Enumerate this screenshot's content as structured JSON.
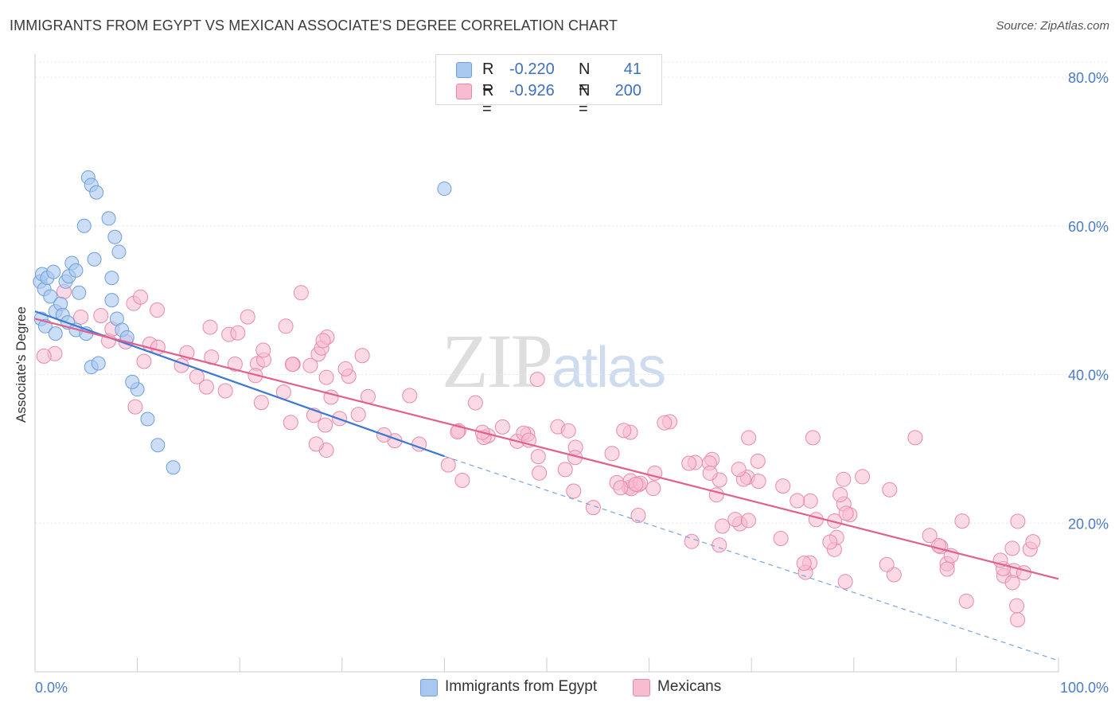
{
  "title": "IMMIGRANTS FROM EGYPT VS MEXICAN ASSOCIATE'S DEGREE CORRELATION CHART",
  "source": "Source: ZipAtlas.com",
  "watermark": {
    "zip": "ZIP",
    "atlas": "atlas"
  },
  "legend": {
    "rows": [
      {
        "r_label": "R =",
        "r_value": "-0.220",
        "n_label": "N =",
        "n_value": "41",
        "color": "#a9c8f0",
        "border": "#6f9edb"
      },
      {
        "r_label": "R =",
        "r_value": "-0.926",
        "n_label": "N =",
        "n_value": "200",
        "color": "#f7bcd0",
        "border": "#e889aa"
      }
    ]
  },
  "bottom_legend": [
    {
      "label": "Immigrants from Egypt",
      "color": "#a9c8f0",
      "border": "#6f9edb"
    },
    {
      "label": "Mexicans",
      "color": "#f7bcd0",
      "border": "#e889aa"
    }
  ],
  "chart_data": {
    "type": "scatter",
    "title": "IMMIGRANTS FROM EGYPT VS MEXICAN ASSOCIATE'S DEGREE CORRELATION CHART",
    "xlabel": "",
    "ylabel": "Associate's Degree",
    "xlim": [
      0,
      100
    ],
    "ylim": [
      0,
      80
    ],
    "x_tick_labels": [
      "0.0%",
      "100.0%"
    ],
    "y_ticks": [
      20,
      40,
      60,
      80
    ],
    "y_tick_labels": [
      "20.0%",
      "40.0%",
      "60.0%",
      "80.0%"
    ],
    "grid": true,
    "legend_position": "top-center",
    "series": [
      {
        "name": "Immigrants from Egypt",
        "color": "#a9c8f0",
        "stroke": "#6f9edb",
        "r": -0.22,
        "n": 41,
        "trend": {
          "x0": 0,
          "y0": 48.5,
          "x1": 40,
          "y1": 29.0,
          "dashed_to_x": 100,
          "dashed_to_y": 1.5,
          "color": "#3a78d4"
        },
        "points": [
          [
            0.5,
            52.5
          ],
          [
            0.7,
            53.5
          ],
          [
            0.9,
            51.5
          ],
          [
            1.2,
            53
          ],
          [
            1.5,
            50.5
          ],
          [
            1.8,
            53.8
          ],
          [
            2.0,
            48.5
          ],
          [
            2.5,
            49.5
          ],
          [
            2.7,
            48.0
          ],
          [
            3.0,
            52.5
          ],
          [
            3.3,
            53.2
          ],
          [
            3.6,
            55.0
          ],
          [
            4.0,
            54.0
          ],
          [
            4.3,
            51.0
          ],
          [
            4.8,
            60.0
          ],
          [
            5.2,
            66.5
          ],
          [
            5.5,
            65.5
          ],
          [
            5.8,
            55.5
          ],
          [
            6.0,
            64.5
          ],
          [
            0.6,
            47.5
          ],
          [
            1.0,
            46.5
          ],
          [
            2.0,
            45.5
          ],
          [
            3.2,
            47.0
          ],
          [
            4.0,
            46.0
          ],
          [
            5.0,
            45.5
          ],
          [
            5.5,
            41.0
          ],
          [
            6.2,
            41.5
          ],
          [
            7.2,
            61.0
          ],
          [
            7.5,
            53.0
          ],
          [
            7.8,
            58.5
          ],
          [
            8.2,
            56.5
          ],
          [
            7.5,
            50.0
          ],
          [
            8.0,
            47.5
          ],
          [
            8.5,
            46.0
          ],
          [
            9.0,
            45.0
          ],
          [
            10.0,
            38.0
          ],
          [
            11.0,
            34.0
          ],
          [
            12.0,
            30.5
          ],
          [
            13.5,
            27.5
          ],
          [
            40.0,
            65.0
          ],
          [
            9.5,
            39.0
          ]
        ]
      },
      {
        "name": "Mexicans",
        "color": "#f7bcd0",
        "stroke": "#e889aa",
        "r": -0.926,
        "n": 200,
        "trend": {
          "x0": 0,
          "y0": 47.5,
          "x1": 100,
          "y1": 12.5,
          "color": "#e0608e"
        }
      }
    ]
  }
}
